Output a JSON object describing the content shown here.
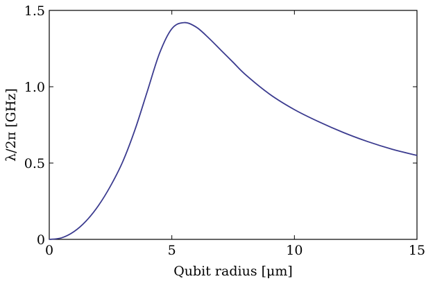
{
  "chart_data": {
    "type": "line",
    "title": "",
    "xlabel": "Qubit radius [μm]",
    "ylabel": "λ/2π [GHz]",
    "xlim": [
      0,
      15
    ],
    "ylim": [
      0,
      1.5
    ],
    "x_ticks": [
      0,
      5,
      10,
      15
    ],
    "x_tick_labels": [
      "0",
      "5",
      "10",
      "15"
    ],
    "y_ticks": [
      0,
      0.5,
      1.0,
      1.5
    ],
    "y_tick_labels": [
      "0",
      "0.5",
      "1.0",
      "1.5"
    ],
    "grid": false,
    "line_color": "#3b3b8f",
    "series": [
      {
        "x": [
          0,
          0.5,
          1,
          1.5,
          2,
          2.5,
          3,
          3.5,
          4,
          4.5,
          5,
          5.5,
          6,
          6.5,
          7,
          7.5,
          8,
          9,
          10,
          11,
          12,
          13,
          14,
          15
        ],
        "values": [
          0,
          0.01,
          0.05,
          0.12,
          0.22,
          0.35,
          0.51,
          0.72,
          0.97,
          1.22,
          1.38,
          1.42,
          1.39,
          1.32,
          1.24,
          1.16,
          1.08,
          0.95,
          0.85,
          0.77,
          0.7,
          0.64,
          0.59,
          0.55
        ]
      }
    ]
  }
}
